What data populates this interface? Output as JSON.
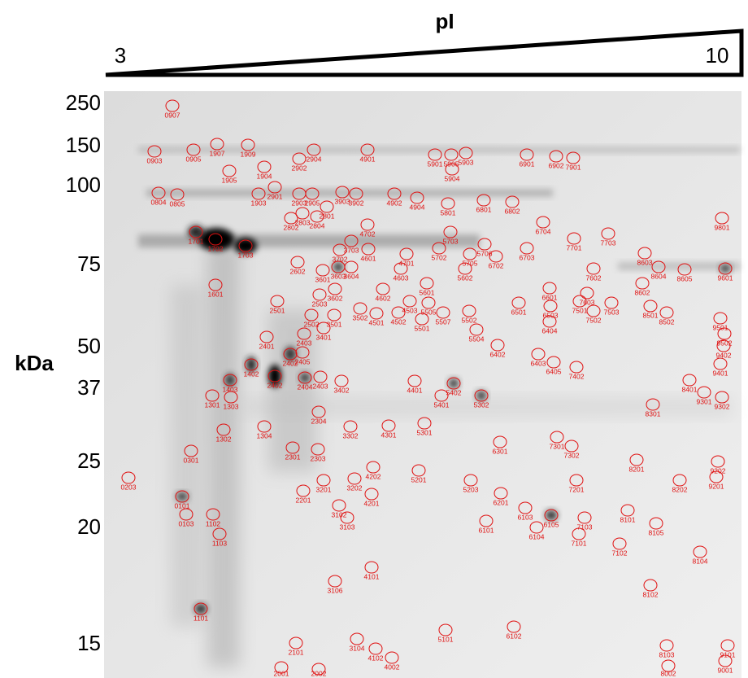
{
  "pi_axis": {
    "label": "pI",
    "ticks": [
      "3",
      "10"
    ]
  },
  "mw_axis": {
    "label": "kDa",
    "ticks": [
      "250",
      "150",
      "100",
      "75",
      "50",
      "37",
      "25",
      "20",
      "15"
    ]
  },
  "spots": [
    "0907",
    "0903",
    "0905",
    "1907",
    "1909",
    "1905",
    "1904",
    "2902",
    "2904",
    "4901",
    "5901",
    "5905",
    "5903",
    "5904",
    "6901",
    "6902",
    "7901",
    "0804",
    "0805",
    "1903",
    "2901",
    "2903",
    "2905",
    "3903",
    "3902",
    "4902",
    "4904",
    "5801",
    "6801",
    "6802",
    "2801",
    "2803",
    "2802",
    "2804",
    "4702",
    "6704",
    "9801",
    "1701",
    "1702",
    "1703",
    "3703",
    "3702",
    "4601",
    "5703",
    "5702",
    "5706",
    "5705",
    "6702",
    "6703",
    "7701",
    "7703",
    "8603",
    "4701",
    "2602",
    "3601",
    "3603",
    "3604",
    "4603",
    "5602",
    "7602",
    "8604",
    "8605",
    "9601",
    "1601",
    "3602",
    "4602",
    "5601",
    "6601",
    "8602",
    "2503",
    "7603",
    "2501",
    "4503",
    "5505",
    "6501",
    "6503",
    "7501",
    "7503",
    "8501",
    "2502",
    "3501",
    "3502",
    "4501",
    "4502",
    "5507",
    "5501",
    "5502",
    "7502",
    "8502",
    "6404",
    "9501",
    "3401",
    "2403",
    "5504",
    "9502",
    "2401",
    "6402",
    "9402",
    "2405",
    "2402",
    "6403",
    "6405",
    "7402",
    "9401",
    "1402",
    "1403",
    "2404",
    "2403",
    "3402",
    "4401",
    "5402",
    "5401",
    "5302",
    "8401",
    "9301",
    "9302",
    "1301",
    "1303",
    "2402",
    "8301",
    "2304",
    "1302",
    "1304",
    "3302",
    "4301",
    "5301",
    "7301",
    "6301",
    "7302",
    "2301",
    "2303",
    "0301",
    "8201",
    "9202",
    "0203",
    "4202",
    "5201",
    "3202",
    "3201",
    "5203",
    "7201",
    "8202",
    "9201",
    "2201",
    "4201",
    "6201",
    "0101",
    "3102",
    "6103",
    "6105",
    "7103",
    "8101",
    "0103",
    "1102",
    "3103",
    "6101",
    "6104",
    "8105",
    "1103",
    "7101",
    "7102",
    "8104",
    "4101",
    "8102",
    "3106",
    "1101",
    "5101",
    "6102",
    "3104",
    "2101",
    "4102",
    "8103",
    "9101",
    "4002",
    "2001",
    "2002",
    "8002",
    "9001"
  ]
}
